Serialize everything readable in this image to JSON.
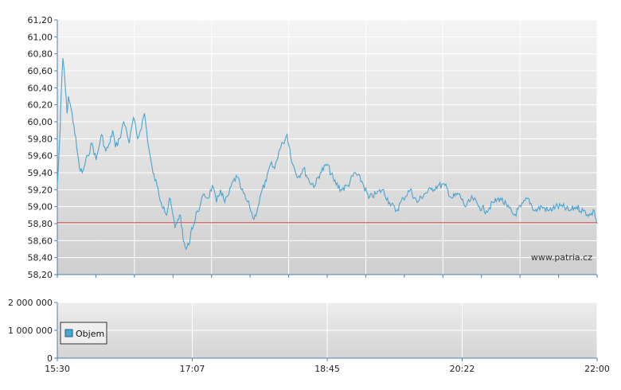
{
  "watermark": "www.patria.cz",
  "colors": {
    "price_line": "#4aa3d0",
    "reference_line": "#cc3333",
    "volume_bar": "#4aa3d0",
    "grid": "#ffffff",
    "axis": "#4d7fb0"
  },
  "chart_data": [
    {
      "type": "line",
      "x_ticks": [
        "15:30",
        "17:07",
        "18:45",
        "20:22",
        "22:00"
      ],
      "x_range_minutes": [
        930,
        1320
      ],
      "ylim": [
        58.2,
        61.2
      ],
      "y_ticks": [
        "58,20",
        "58,40",
        "58,60",
        "58,80",
        "59,00",
        "59,20",
        "59,40",
        "59,60",
        "59,80",
        "60,00",
        "60,20",
        "60,40",
        "60,60",
        "60,80",
        "61,00",
        "61,20"
      ],
      "y_tick_values": [
        58.2,
        58.4,
        58.6,
        58.8,
        59.0,
        59.2,
        59.4,
        59.6,
        59.8,
        60.0,
        60.2,
        60.4,
        60.6,
        60.8,
        61.0,
        61.2
      ],
      "reference_value": 58.81,
      "grid": true,
      "series": [
        {
          "x_minutes": [
            930,
            931,
            932,
            933,
            934,
            935,
            936,
            937,
            938,
            940,
            942,
            944,
            946,
            948,
            950,
            952,
            955,
            958,
            960,
            962,
            965,
            968,
            970,
            972,
            975,
            978,
            980,
            982,
            985,
            988,
            990,
            993,
            996,
            999,
            1002,
            1005,
            1007,
            1009,
            1011,
            1013,
            1015,
            1017,
            1019,
            1021,
            1023,
            1025,
            1027,
            1029,
            1031,
            1033,
            1036,
            1039,
            1042,
            1045,
            1048,
            1051,
            1054,
            1057,
            1060,
            1063,
            1066,
            1069,
            1072,
            1075,
            1078,
            1081,
            1084,
            1087,
            1090,
            1093,
            1096,
            1100,
            1104,
            1108,
            1112,
            1116,
            1120,
            1125,
            1130,
            1135,
            1140,
            1145,
            1150,
            1155,
            1160,
            1165,
            1170,
            1175,
            1180,
            1185,
            1190,
            1195,
            1200,
            1205,
            1210,
            1215,
            1220,
            1225,
            1230,
            1235,
            1240,
            1245,
            1250,
            1255,
            1260,
            1265,
            1270,
            1275,
            1280,
            1285,
            1290,
            1295,
            1300,
            1305,
            1310,
            1315,
            1318,
            1320
          ],
          "values": [
            59.25,
            59.55,
            59.9,
            60.4,
            60.75,
            60.6,
            60.35,
            60.1,
            60.3,
            60.15,
            59.95,
            59.7,
            59.45,
            59.4,
            59.5,
            59.6,
            59.75,
            59.55,
            59.7,
            59.85,
            59.65,
            59.75,
            59.9,
            59.7,
            59.8,
            60.0,
            59.9,
            59.75,
            60.05,
            59.8,
            59.9,
            60.1,
            59.7,
            59.4,
            59.25,
            59.05,
            59.0,
            58.9,
            59.1,
            58.95,
            58.75,
            58.85,
            58.9,
            58.6,
            58.5,
            58.55,
            58.75,
            58.8,
            58.95,
            59.0,
            59.15,
            59.1,
            59.25,
            59.05,
            59.2,
            59.05,
            59.15,
            59.3,
            59.35,
            59.2,
            59.1,
            59.0,
            58.85,
            59.0,
            59.2,
            59.3,
            59.5,
            59.45,
            59.65,
            59.75,
            59.85,
            59.5,
            59.35,
            59.45,
            59.3,
            59.25,
            59.4,
            59.5,
            59.3,
            59.2,
            59.25,
            59.4,
            59.3,
            59.1,
            59.15,
            59.2,
            59.05,
            58.95,
            59.1,
            59.2,
            59.05,
            59.15,
            59.2,
            59.25,
            59.25,
            59.1,
            59.15,
            59.0,
            59.1,
            59.0,
            58.95,
            59.05,
            59.1,
            59.0,
            58.9,
            59.0,
            59.1,
            58.95,
            59.0,
            58.95,
            59.0,
            59.0,
            58.95,
            59.0,
            58.95,
            58.9,
            58.95,
            58.8
          ]
        }
      ]
    },
    {
      "type": "bar",
      "legend": "Objem",
      "legend_placement": "left",
      "ylim": [
        0,
        2000000
      ],
      "y_ticks": [
        "0",
        "1 000 000",
        "2 000 000"
      ],
      "y_tick_values": [
        0,
        1000000,
        2000000
      ],
      "x_ticks": [
        "15:30",
        "17:07",
        "18:45",
        "20:22",
        "22:00"
      ],
      "grid": true,
      "series": [
        {
          "name": "Objem",
          "x_minutes": [
            935,
            960,
            990,
            1015,
            1045,
            1075,
            1100,
            1130,
            1160,
            1190,
            1220,
            1250,
            1280,
            1310
          ],
          "values": [
            30000,
            15000,
            12000,
            20000,
            10000,
            12000,
            9000,
            10000,
            8000,
            9000,
            11000,
            7000,
            9000,
            8000
          ]
        }
      ]
    }
  ]
}
